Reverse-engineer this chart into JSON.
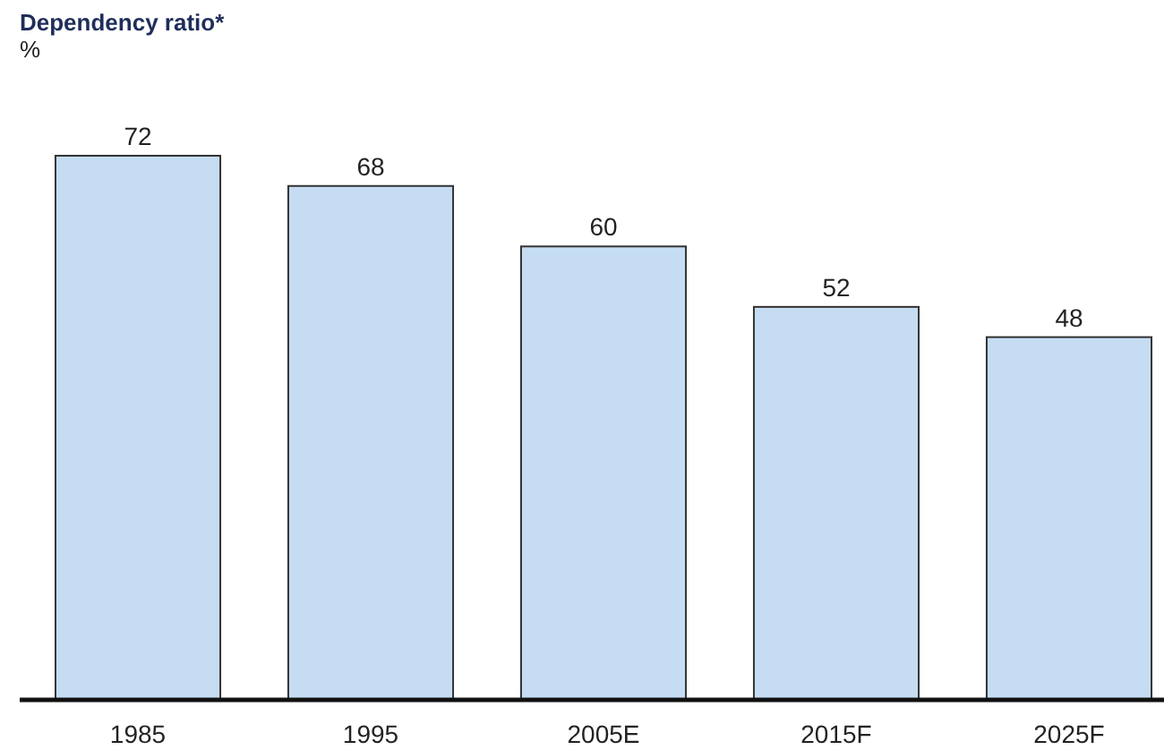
{
  "chart_data": {
    "type": "bar",
    "title": "Dependency ratio*",
    "ylabel": "%",
    "categories": [
      "1985",
      "1995",
      "2005E",
      "2015F",
      "2025F"
    ],
    "values": [
      72,
      68,
      60,
      52,
      48
    ],
    "color": "#c5dcf2",
    "data_labels": true
  }
}
